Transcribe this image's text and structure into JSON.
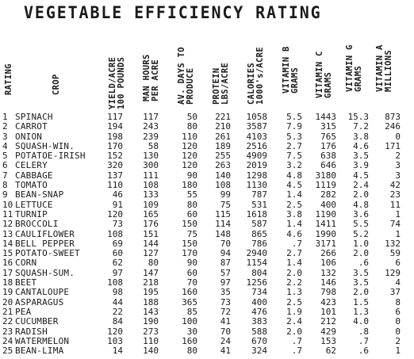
{
  "title": "VEGETABLE EFFICIENCY RATING",
  "headers": {
    "rating": [
      "RATING"
    ],
    "crop": [
      "CROP"
    ],
    "yield": [
      "YIELD/ACRE",
      "100 POUNDS"
    ],
    "man_hours": [
      "MAN HOURS",
      "PER ACRE"
    ],
    "days": [
      "AV. DAYS TO",
      "PRODUCE"
    ],
    "protein": [
      "PROTEIN",
      "LBS/ACRE"
    ],
    "calories": [
      "CALORIES",
      "1000's/ACRE"
    ],
    "vit_b": [
      "VITAMIN B",
      "GRAMS"
    ],
    "vit_c": [
      "VITAMIN C",
      "GRAMS"
    ],
    "vit_g": [
      "VITAMIN G",
      "GRAMS"
    ],
    "vit_a": [
      "VITAMIN A",
      "MILLIONS"
    ]
  },
  "rows": [
    {
      "rank": "1",
      "crop": "SPINACH",
      "yield": "117",
      "hours": "117",
      "days": "50",
      "protein": "221",
      "calories": "1058",
      "b": "5.5",
      "c": "1443",
      "g": "15.3",
      "a": "873"
    },
    {
      "rank": "2",
      "crop": "CARROT",
      "yield": "194",
      "hours": "243",
      "days": "80",
      "protein": "210",
      "calories": "3587",
      "b": "7.9",
      "c": "315",
      "g": "7.2",
      "a": "246"
    },
    {
      "rank": "3",
      "crop": "ONION",
      "yield": "198",
      "hours": "239",
      "days": "110",
      "protein": "261",
      "calories": "4103",
      "b": "5.3",
      "c": "765",
      "g": "3.8",
      "a": "0"
    },
    {
      "rank": "4",
      "crop": "SQUASH-WIN.",
      "yield": "170",
      "hours": "58",
      "days": "120",
      "protein": "189",
      "calories": "2516",
      "b": "2.7",
      "c": "176",
      "g": "4.6",
      "a": "171"
    },
    {
      "rank": "5",
      "crop": "POTATOE-IRISH",
      "yield": "152",
      "hours": "130",
      "days": "120",
      "protein": "255",
      "calories": "4909",
      "b": "7.5",
      "c": "638",
      "g": "3.5",
      "a": "2"
    },
    {
      "rank": "6",
      "crop": "CELERY",
      "yield": "320",
      "hours": "300",
      "days": "120",
      "protein": "263",
      "calories": "2019",
      "b": "3.2",
      "c": "646",
      "g": "3.9",
      "a": "3"
    },
    {
      "rank": "7",
      "crop": "CABBAGE",
      "yield": "137",
      "hours": "111",
      "days": "90",
      "protein": "140",
      "calories": "1298",
      "b": "4.8",
      "c": "3180",
      "g": "4.5",
      "a": "3"
    },
    {
      "rank": "8",
      "crop": "TOMATO",
      "yield": "110",
      "hours": "108",
      "days": "180",
      "protein": "108",
      "calories": "1130",
      "b": "4.5",
      "c": "1119",
      "g": "2.4",
      "a": "42"
    },
    {
      "rank": "9",
      "crop": "BEAN-SNAP",
      "yield": "46",
      "hours": "133",
      "days": "55",
      "protein": "99",
      "calories": "787",
      "b": "1.4",
      "c": "282",
      "g": "2.0",
      "a": "23"
    },
    {
      "rank": "10",
      "crop": "LETTUCE",
      "yield": "91",
      "hours": "109",
      "days": "80",
      "protein": "75",
      "calories": "531",
      "b": "2.5",
      "c": "400",
      "g": "4.8",
      "a": "11"
    },
    {
      "rank": "11",
      "crop": "TURNIP",
      "yield": "120",
      "hours": "165",
      "days": "60",
      "protein": "115",
      "calories": "1618",
      "b": "3.8",
      "c": "1190",
      "g": "3.6",
      "a": "1"
    },
    {
      "rank": "12",
      "crop": "BROCCOLI",
      "yield": "73",
      "hours": "176",
      "days": "150",
      "protein": "114",
      "calories": "587",
      "b": "1.4",
      "c": "1411",
      "g": "5.5",
      "a": "74"
    },
    {
      "rank": "13",
      "crop": "CAULIFLOWER",
      "yield": "108",
      "hours": "151",
      "days": "75",
      "protein": "148",
      "calories": "865",
      "b": "4.6",
      "c": "1990",
      "g": "5.2",
      "a": "1"
    },
    {
      "rank": "14",
      "crop": "BELL PEPPER",
      "yield": "69",
      "hours": "144",
      "days": "150",
      "protein": "70",
      "calories": "786",
      "b": ".7",
      "c": "3171",
      "g": "1.0",
      "a": "132"
    },
    {
      "rank": "15",
      "crop": "POTATO-SWEET",
      "yield": "60",
      "hours": "127",
      "days": "170",
      "protein": "94",
      "calories": "2940",
      "b": "2.7",
      "c": "266",
      "g": "2.0",
      "a": "59"
    },
    {
      "rank": "16",
      "crop": "CORN",
      "yield": "62",
      "hours": "80",
      "days": "90",
      "protein": "87",
      "calories": "1154",
      "b": "1.4",
      "c": "106",
      "g": ".6",
      "a": "6"
    },
    {
      "rank": "17",
      "crop": "SQUASH-SUM.",
      "yield": "97",
      "hours": "147",
      "days": "60",
      "protein": "57",
      "calories": "804",
      "b": "2.0",
      "c": "132",
      "g": "3.5",
      "a": "129"
    },
    {
      "rank": "18",
      "crop": "BEET",
      "yield": "108",
      "hours": "218",
      "days": "70",
      "protein": "97",
      "calories": "1256",
      "b": "2.2",
      "c": "146",
      "g": "3.5",
      "a": "4"
    },
    {
      "rank": "19",
      "crop": "CANTALOUPE",
      "yield": "98",
      "hours": "195",
      "days": "160",
      "protein": "35",
      "calories": "734",
      "b": "1.3",
      "c": "798",
      "g": "2.0",
      "a": "37"
    },
    {
      "rank": "20",
      "crop": "ASPARAGUS",
      "yield": "44",
      "hours": "188",
      "days": "365",
      "protein": "73",
      "calories": "400",
      "b": "2.5",
      "c": "423",
      "g": "1.5",
      "a": "8"
    },
    {
      "rank": "21",
      "crop": "PEA",
      "yield": "22",
      "hours": "143",
      "days": "85",
      "protein": "72",
      "calories": "476",
      "b": "1.9",
      "c": "101",
      "g": "1.3",
      "a": "6"
    },
    {
      "rank": "22",
      "crop": "CUCUMBER",
      "yield": "84",
      "hours": "190",
      "days": "100",
      "protein": "41",
      "calories": "383",
      "b": "2.4",
      "c": "212",
      "g": "4.0",
      "a": "0"
    },
    {
      "rank": "23",
      "crop": "RADISH",
      "yield": "120",
      "hours": "273",
      "days": "30",
      "protein": "70",
      "calories": "588",
      "b": "2.0",
      "c": "429",
      "g": ".8",
      "a": "0"
    },
    {
      "rank": "24",
      "crop": "WATERMELON",
      "yield": "103",
      "hours": "110",
      "days": "160",
      "protein": "24",
      "calories": "670",
      "b": ".7",
      "c": "153",
      "g": ".7",
      "a": "2"
    },
    {
      "rank": "25",
      "crop": "BEAN-LIMA",
      "yield": "14",
      "hours": "140",
      "days": "80",
      "protein": "41",
      "calories": "324",
      "b": ".7",
      "c": "62",
      "g": ".6",
      "a": "1"
    }
  ]
}
